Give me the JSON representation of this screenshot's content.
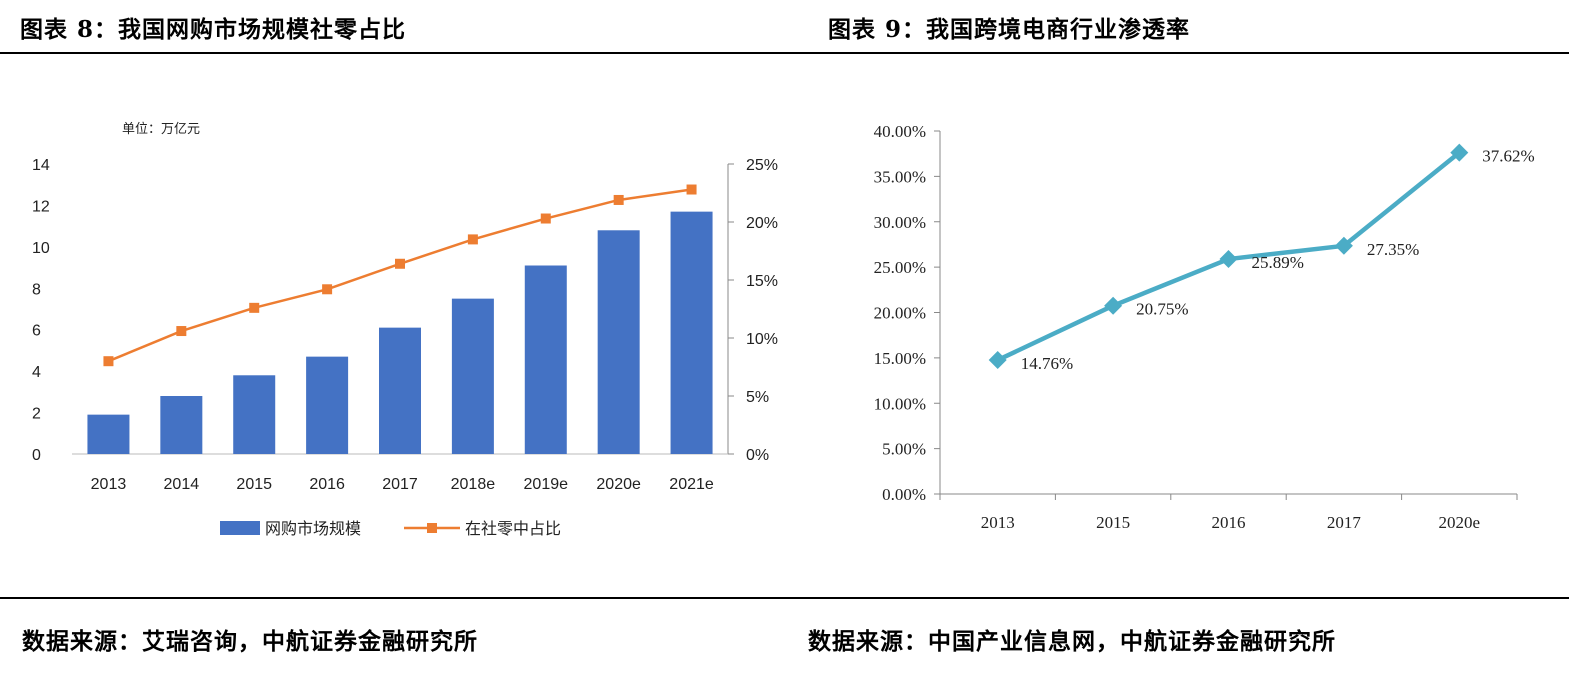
{
  "headers": {
    "left_title": "图表 8：我国网购市场规模社零占比",
    "right_title": "图表 9：我国跨境电商行业渗透率"
  },
  "sources": {
    "left": "数据来源：艾瑞咨询，中航证券金融研究所",
    "right": "数据来源：中国产业信息网，中航证券金融研究所"
  },
  "chart_data": [
    {
      "type": "bar",
      "unit_label": "单位：万亿元",
      "categories": [
        "2013",
        "2014",
        "2015",
        "2016",
        "2017",
        "2018e",
        "2019e",
        "2020e",
        "2021e"
      ],
      "series": [
        {
          "name": "网购市场规模",
          "type": "bar",
          "axis": "left",
          "color": "#4472C4",
          "values": [
            1.9,
            2.8,
            3.8,
            4.7,
            6.1,
            7.5,
            9.1,
            10.8,
            11.7
          ]
        },
        {
          "name": "在社零中占比",
          "type": "line",
          "axis": "right",
          "color": "#ED7D31",
          "values": [
            8.0,
            10.6,
            12.6,
            14.2,
            16.4,
            18.5,
            20.3,
            21.9,
            22.8
          ]
        }
      ],
      "left_axis": {
        "ylim": [
          0,
          14
        ],
        "ticks": [
          "0",
          "2",
          "4",
          "6",
          "8",
          "10",
          "12",
          "14"
        ]
      },
      "right_axis": {
        "ylim": [
          0,
          25
        ],
        "ticks": [
          "0%",
          "5%",
          "10%",
          "15%",
          "20%",
          "25%"
        ]
      },
      "legend_position": "bottom"
    },
    {
      "type": "line",
      "categories": [
        "2013",
        "2015",
        "2016",
        "2017",
        "2020e"
      ],
      "series": [
        {
          "color": "#4BACC6",
          "values": [
            14.76,
            20.75,
            25.89,
            27.35,
            37.62
          ],
          "labels": [
            "14.76%",
            "20.75%",
            "25.89%",
            "27.35%",
            "37.62%"
          ]
        }
      ],
      "ylim": [
        0,
        40
      ],
      "ticks": [
        "0.00%",
        "5.00%",
        "10.00%",
        "15.00%",
        "20.00%",
        "25.00%",
        "30.00%",
        "35.00%",
        "40.00%"
      ],
      "grid": false
    }
  ]
}
